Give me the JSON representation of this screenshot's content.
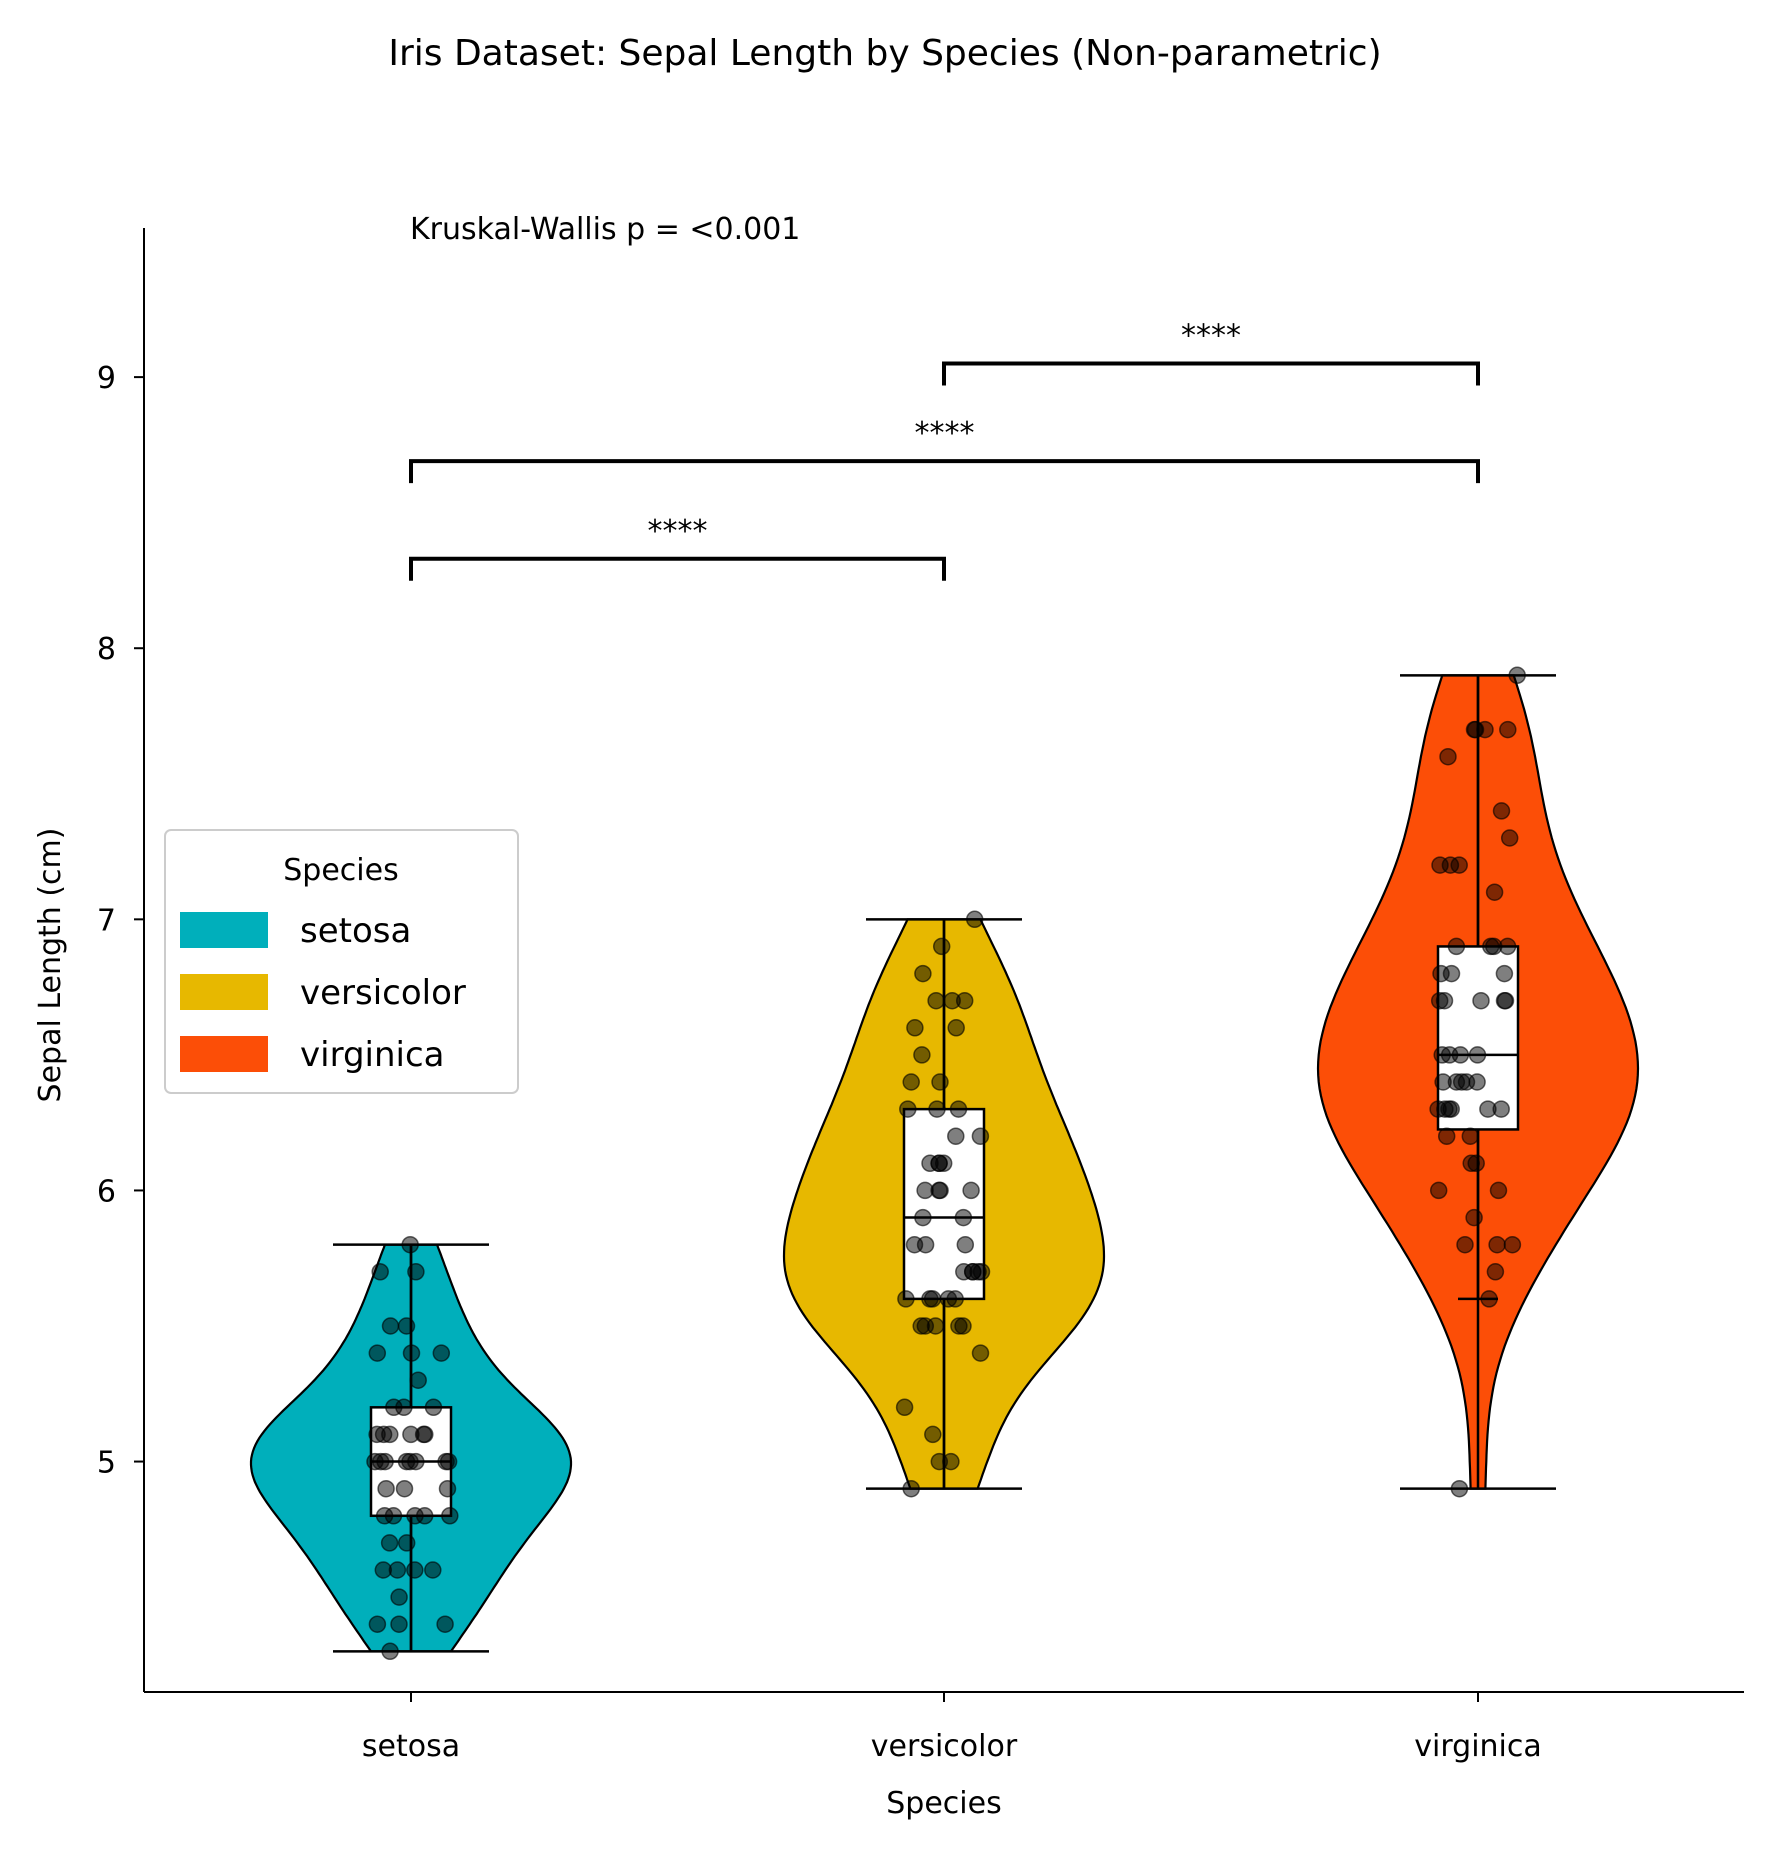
{
  "chart_data": {
    "type": "violin",
    "title": "Iris Dataset: Sepal Length by Species (Non-parametric)",
    "xlabel": "Species",
    "ylabel": "Sepal Length (cm)",
    "ylim": [
      4.15,
      9.55
    ],
    "yticks": [
      5,
      6,
      7,
      8,
      9
    ],
    "categories": [
      "setosa",
      "versicolor",
      "virginica"
    ],
    "grid": false,
    "legend": {
      "title": "Species",
      "position": "center-left"
    },
    "annotation": "Kruskal-Wallis p = <0.001",
    "series": [
      {
        "name": "setosa",
        "color": "#00AFBB",
        "min": 4.3,
        "q1": 4.8,
        "median": 5.0,
        "q3": 5.2,
        "max": 5.8,
        "points": [
          5.8,
          5.7,
          5.7,
          5.5,
          5.5,
          5.4,
          5.4,
          5.4,
          5.3,
          5.2,
          5.2,
          5.2,
          5.1,
          5.1,
          5.1,
          5.1,
          5.1,
          5.1,
          5.0,
          5.0,
          5.0,
          5.0,
          5.0,
          5.0,
          5.0,
          5.0,
          4.9,
          4.9,
          4.9,
          4.8,
          4.8,
          4.8,
          4.8,
          4.8,
          4.7,
          4.7,
          4.6,
          4.6,
          4.6,
          4.6,
          4.5,
          4.4,
          4.4,
          4.4,
          4.3
        ]
      },
      {
        "name": "versicolor",
        "color": "#E7B800",
        "min": 4.9,
        "q1": 5.6,
        "median": 5.9,
        "q3": 6.3,
        "max": 7.0,
        "points": [
          7.0,
          6.9,
          6.8,
          6.7,
          6.7,
          6.7,
          6.6,
          6.6,
          6.5,
          6.4,
          6.4,
          6.3,
          6.3,
          6.3,
          6.2,
          6.2,
          6.1,
          6.1,
          6.1,
          6.1,
          6.0,
          6.0,
          6.0,
          6.0,
          5.9,
          5.9,
          5.8,
          5.8,
          5.8,
          5.7,
          5.7,
          5.7,
          5.7,
          5.7,
          5.6,
          5.6,
          5.6,
          5.6,
          5.6,
          5.5,
          5.5,
          5.5,
          5.5,
          5.5,
          5.4,
          5.2,
          5.1,
          5.0,
          5.0,
          4.9
        ]
      },
      {
        "name": "virginica",
        "color": "#FC4E07",
        "min": 5.6,
        "q1": 6.225,
        "median": 6.5,
        "q3": 6.9,
        "max": 7.9,
        "points": [
          7.9,
          7.7,
          7.7,
          7.7,
          7.7,
          7.6,
          7.4,
          7.3,
          7.2,
          7.2,
          7.2,
          7.1,
          6.9,
          6.9,
          6.9,
          6.9,
          6.8,
          6.8,
          6.8,
          6.7,
          6.7,
          6.7,
          6.7,
          6.7,
          6.5,
          6.5,
          6.5,
          6.5,
          6.4,
          6.4,
          6.4,
          6.4,
          6.4,
          6.3,
          6.3,
          6.3,
          6.3,
          6.3,
          6.3,
          6.2,
          6.2,
          6.1,
          6.1,
          6.0,
          6.0,
          5.9,
          5.8,
          5.8,
          5.8,
          5.7,
          5.6,
          4.9
        ],
        "outlier": 4.9
      }
    ],
    "comparisons": [
      {
        "from": "setosa",
        "to": "versicolor",
        "label": "****",
        "y": 8.33
      },
      {
        "from": "setosa",
        "to": "virginica",
        "label": "****",
        "y": 8.69
      },
      {
        "from": "versicolor",
        "to": "virginica",
        "label": "****",
        "y": 9.05
      }
    ]
  }
}
